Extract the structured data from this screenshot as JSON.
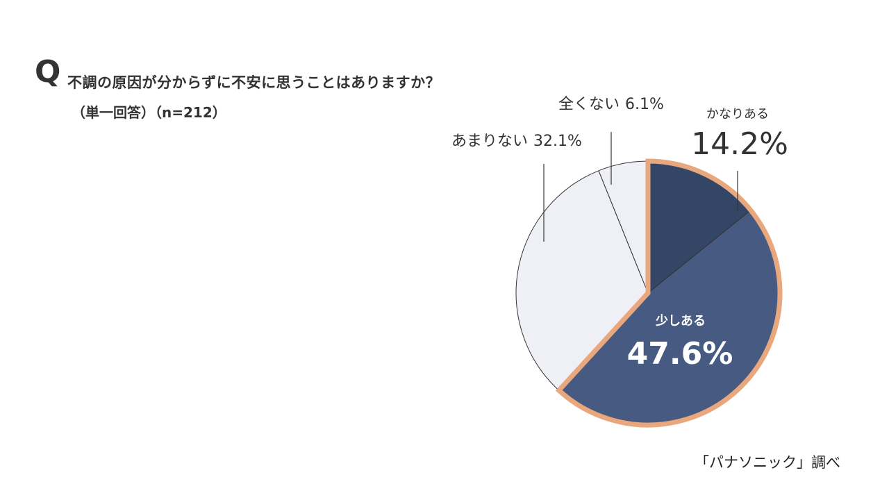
{
  "header": {
    "q_mark": "Q",
    "question": "不調の原因が分からずに不安に思うことはありますか？",
    "subtitle": "（単一回答）（n=212）"
  },
  "credit": "「パナソニック」調べ",
  "chart_data": {
    "type": "pie",
    "title": "不調の原因が分からずに不安に思うことはありますか？",
    "start_angle_deg": 0,
    "direction": "clockwise",
    "slices": [
      {
        "label": "かなりある",
        "value": 14.2,
        "display": "14.2%",
        "color": "#344666",
        "highlight": true
      },
      {
        "label": "少しある",
        "value": 47.6,
        "display": "47.6%",
        "color": "#475a82",
        "highlight": true
      },
      {
        "label": "あまりない",
        "value": 32.1,
        "display": "32.1%",
        "color": "#eff0f5",
        "highlight": false
      },
      {
        "label": "全くない",
        "value": 6.1,
        "display": "6.1%",
        "color": "#eff0f5",
        "highlight": false
      }
    ],
    "highlight_color": "#e9a77e",
    "outline_color": "#333333"
  }
}
